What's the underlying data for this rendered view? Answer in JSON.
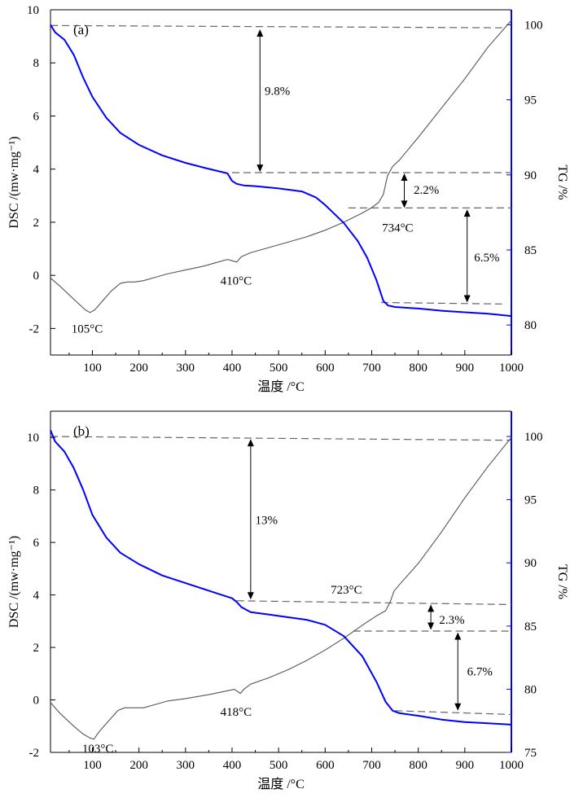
{
  "chart_data": [
    {
      "type": "line",
      "panel_label": "(a)",
      "xlabel": "温度 /°C",
      "ylabel_left": "DSC /(mw·mg⁻¹)",
      "ylabel_right": "TG /%",
      "xlim": [
        10,
        1000
      ],
      "ylim_left": [
        -3,
        10
      ],
      "ylim_right": [
        78,
        101
      ],
      "x_ticks": [
        100,
        200,
        300,
        400,
        500,
        600,
        700,
        800,
        900,
        1000
      ],
      "left_ticks": [
        -2,
        0,
        2,
        4,
        6,
        8,
        10
      ],
      "right_ticks": [
        80,
        85,
        90,
        95,
        100
      ],
      "colors": {
        "dsc": "#555555",
        "tg": "#0000ff",
        "guide": "#666666"
      },
      "series": [
        {
          "name": "DSC",
          "axis": "left",
          "x": [
            10,
            30,
            60,
            85,
            95,
            105,
            120,
            140,
            160,
            175,
            190,
            210,
            230,
            260,
            300,
            340,
            370,
            390,
            400,
            410,
            420,
            440,
            480,
            520,
            560,
            600,
            640,
            680,
            700,
            715,
            725,
            734,
            745,
            760,
            800,
            850,
            900,
            950,
            1000
          ],
          "values": [
            -0.1,
            -0.4,
            -0.9,
            -1.3,
            -1.4,
            -1.3,
            -1.0,
            -0.6,
            -0.3,
            -0.25,
            -0.25,
            -0.2,
            -0.1,
            0.05,
            0.2,
            0.35,
            0.5,
            0.6,
            0.55,
            0.5,
            0.7,
            0.85,
            1.05,
            1.25,
            1.45,
            1.7,
            2.0,
            2.35,
            2.55,
            2.75,
            3.05,
            3.75,
            4.1,
            4.35,
            5.2,
            6.3,
            7.4,
            8.6,
            9.6
          ]
        },
        {
          "name": "TG",
          "axis": "right",
          "x": [
            10,
            20,
            40,
            60,
            80,
            100,
            130,
            160,
            200,
            250,
            300,
            350,
            390,
            400,
            410,
            425,
            450,
            500,
            550,
            580,
            600,
            640,
            670,
            690,
            710,
            725,
            735,
            750,
            800,
            850,
            900,
            950,
            1000
          ],
          "values": [
            100.0,
            99.5,
            99.0,
            98.0,
            96.5,
            95.2,
            93.8,
            92.8,
            92.0,
            91.3,
            90.8,
            90.4,
            90.1,
            89.6,
            89.4,
            89.3,
            89.25,
            89.1,
            88.9,
            88.5,
            88.0,
            86.8,
            85.6,
            84.5,
            83.0,
            81.6,
            81.3,
            81.2,
            81.1,
            80.95,
            80.85,
            80.75,
            80.6
          ]
        }
      ],
      "guides": [
        {
          "axis": "right",
          "x": [
            10,
            980
          ],
          "values": [
            99.95,
            99.8
          ]
        },
        {
          "axis": "right",
          "x": [
            400,
            1000
          ],
          "values": [
            90.15,
            90.15
          ]
        },
        {
          "axis": "right",
          "x": [
            650,
            1000
          ],
          "values": [
            87.8,
            87.8
          ]
        },
        {
          "axis": "right",
          "x": [
            720,
            980
          ],
          "values": [
            81.5,
            81.4
          ]
        }
      ],
      "arrows": [
        {
          "x": 460,
          "from": 99.7,
          "to": 90.2,
          "label": "9.8%",
          "label_x": 470,
          "label_y": 95.6
        },
        {
          "x": 770,
          "from": 90.1,
          "to": 87.8,
          "label": "2.2%",
          "label_x": 790,
          "label_y": 89.0
        },
        {
          "x": 905,
          "from": 87.7,
          "to": 81.5,
          "label": "6.5%",
          "label_x": 920,
          "label_y": 84.5
        }
      ],
      "annotations": [
        {
          "text": "105°C",
          "x": 55,
          "y": -2.0
        },
        {
          "text": "410°C",
          "x": 375,
          "y": -0.2
        },
        {
          "text": "734°C",
          "x": 722,
          "y": 1.8
        }
      ]
    },
    {
      "type": "line",
      "panel_label": "(b)",
      "xlabel": "温度 /°C",
      "ylabel_left": "DSC /(mw·mg⁻¹)",
      "ylabel_right": "TG /%",
      "xlim": [
        10,
        1000
      ],
      "ylim_left": [
        -2,
        11
      ],
      "ylim_right": [
        75,
        102
      ],
      "x_ticks": [
        100,
        200,
        300,
        400,
        500,
        600,
        700,
        800,
        900,
        1000
      ],
      "left_ticks": [
        -2,
        0,
        2,
        4,
        6,
        8,
        10
      ],
      "right_ticks": [
        75,
        80,
        85,
        90,
        95,
        100
      ],
      "colors": {
        "dsc": "#555555",
        "tg": "#0000ff",
        "guide": "#666666"
      },
      "series": [
        {
          "name": "DSC",
          "axis": "left",
          "x": [
            10,
            30,
            60,
            80,
            95,
            103,
            115,
            135,
            155,
            170,
            190,
            210,
            230,
            260,
            300,
            350,
            390,
            405,
            418,
            425,
            440,
            480,
            520,
            560,
            600,
            640,
            680,
            710,
            730,
            740,
            748,
            760,
            800,
            850,
            900,
            950,
            1000
          ],
          "values": [
            -0.1,
            -0.5,
            -1.0,
            -1.3,
            -1.45,
            -1.5,
            -1.2,
            -0.8,
            -0.4,
            -0.3,
            -0.3,
            -0.3,
            -0.2,
            -0.05,
            0.05,
            0.2,
            0.35,
            0.4,
            0.25,
            0.4,
            0.6,
            0.85,
            1.15,
            1.5,
            1.9,
            2.35,
            2.85,
            3.2,
            3.4,
            3.75,
            4.15,
            4.4,
            5.2,
            6.4,
            7.7,
            8.9,
            10.0
          ]
        },
        {
          "name": "TG",
          "axis": "right",
          "x": [
            10,
            20,
            40,
            60,
            80,
            100,
            130,
            160,
            200,
            250,
            300,
            350,
            400,
            410,
            420,
            440,
            480,
            520,
            560,
            600,
            640,
            680,
            710,
            730,
            745,
            760,
            800,
            850,
            900,
            950,
            1000
          ],
          "values": [
            100.5,
            99.6,
            98.8,
            97.5,
            95.8,
            93.8,
            92.0,
            90.8,
            89.9,
            89.0,
            88.4,
            87.8,
            87.2,
            86.9,
            86.5,
            86.1,
            85.9,
            85.7,
            85.5,
            85.1,
            84.2,
            82.6,
            80.6,
            79.0,
            78.3,
            78.1,
            77.9,
            77.6,
            77.4,
            77.3,
            77.2
          ]
        }
      ],
      "guides": [
        {
          "axis": "right",
          "x": [
            10,
            1000
          ],
          "values": [
            100.0,
            99.7
          ]
        },
        {
          "axis": "right",
          "x": [
            410,
            1000
          ],
          "values": [
            87.0,
            86.7
          ]
        },
        {
          "axis": "right",
          "x": [
            660,
            1000
          ],
          "values": [
            84.6,
            84.6
          ]
        },
        {
          "axis": "right",
          "x": [
            750,
            1000
          ],
          "values": [
            78.3,
            78.0
          ]
        }
      ],
      "arrows": [
        {
          "x": 440,
          "from": 99.8,
          "to": 87.1,
          "label": "13%",
          "label_x": 450,
          "label_y": 93.4
        },
        {
          "x": 827,
          "from": 86.7,
          "to": 84.7,
          "label": "2.3%",
          "label_x": 845,
          "label_y": 85.5
        },
        {
          "x": 885,
          "from": 84.5,
          "to": 78.3,
          "label": "6.7%",
          "label_x": 905,
          "label_y": 81.4
        }
      ],
      "annotations": [
        {
          "text": "103°C",
          "x": 78,
          "y": -1.85
        },
        {
          "text": "418°C",
          "x": 375,
          "y": -0.45
        },
        {
          "text": "723°C",
          "x": 612,
          "y": 4.2
        }
      ]
    }
  ]
}
